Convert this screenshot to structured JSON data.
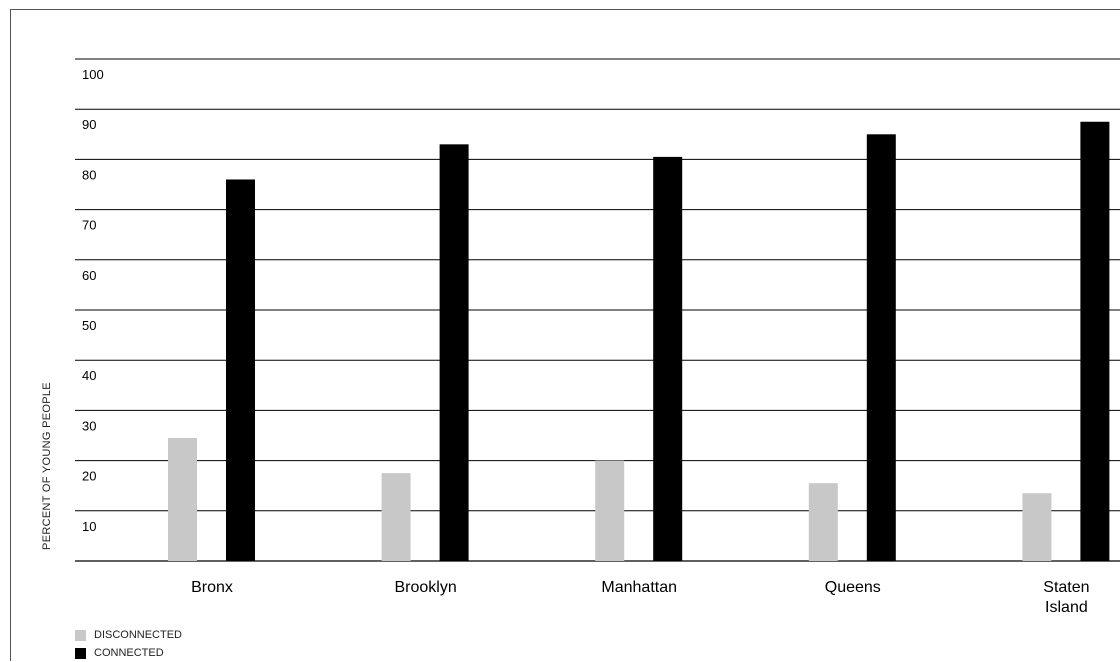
{
  "chart_data": {
    "type": "bar",
    "title": "",
    "xlabel": "",
    "ylabel": "PERCENT OF YOUNG PEOPLE",
    "ylim": [
      0,
      100
    ],
    "yticks": [
      10,
      20,
      30,
      40,
      50,
      60,
      70,
      80,
      90,
      100
    ],
    "grid": true,
    "legend_position": "bottom-left",
    "categories": [
      "Bronx",
      "Brooklyn",
      "Manhattan",
      "Queens",
      "Staten Island"
    ],
    "series": [
      {
        "name": "DISCONNECTED",
        "color": "#c8c8c8",
        "values": [
          24.5,
          17.5,
          20,
          15.5,
          13.5
        ]
      },
      {
        "name": "CONNECTED",
        "color": "#000000",
        "values": [
          76,
          83,
          80.5,
          85,
          87.5
        ]
      }
    ]
  }
}
